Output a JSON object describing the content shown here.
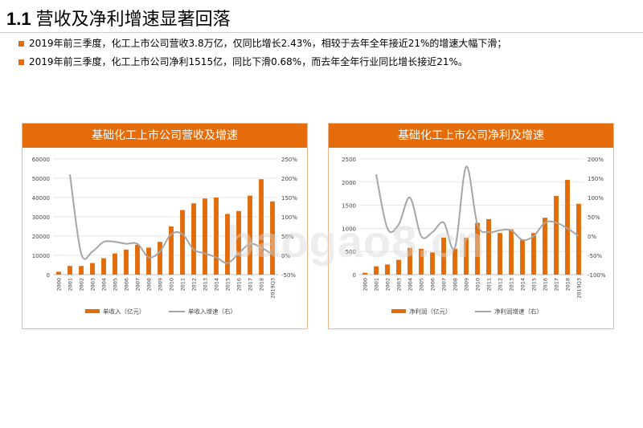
{
  "header": {
    "number": "1.1",
    "title": "营收及净利增速显著回落"
  },
  "bullets": [
    "2019年前三季度，化工上市公司营收3.8万亿，仅同比增长2.43%，相较于去年全年接近21%的增速大幅下滑；",
    "2019年前三季度，化工上市公司净利1515亿，同比下滑0.68%，而去年全年行业同比增长接近21%。"
  ],
  "watermark": "baogao8.cn",
  "colors": {
    "accent": "#e46c0a",
    "bar": "#e36c0a",
    "line": "#a6a6a6"
  },
  "chart_data": [
    {
      "type": "bar",
      "title": "基础化工上市公司营收及增速",
      "categories": [
        "2000",
        "2001",
        "2002",
        "2003",
        "2004",
        "2005",
        "2006",
        "2007",
        "2008",
        "2009",
        "2010",
        "2011",
        "2012",
        "2013",
        "2014",
        "2015",
        "2016",
        "2017",
        "2018",
        "2019Q3"
      ],
      "series": [
        {
          "name": "单收入（亿元）",
          "type": "bar",
          "axis": "left",
          "values": [
            1500,
            4500,
            4500,
            6000,
            8500,
            11000,
            13000,
            15500,
            14000,
            17000,
            25000,
            33500,
            37000,
            39500,
            40000,
            31500,
            33000,
            41000,
            49500,
            38000
          ]
        },
        {
          "name": "单收入增速（右）",
          "type": "line",
          "axis": "right",
          "values": [
            null,
            210,
            5,
            10,
            35,
            35,
            30,
            30,
            -5,
            10,
            55,
            55,
            15,
            5,
            -5,
            -20,
            5,
            30,
            20,
            2
          ]
        }
      ],
      "ylim": [
        0,
        60000
      ],
      "yticks": [
        0,
        10000,
        20000,
        30000,
        40000,
        50000,
        60000
      ],
      "y2lim": [
        -50,
        250
      ],
      "y2ticks": [
        "-50%",
        "0%",
        "50%",
        "100%",
        "150%",
        "200%",
        "250%"
      ],
      "legend": "bottom",
      "grid": true
    },
    {
      "type": "bar",
      "title": "基础化工上市公司净利及增速",
      "categories": [
        "2000",
        "2001",
        "2002",
        "2003",
        "2004",
        "2005",
        "2006",
        "2007",
        "2008",
        "2009",
        "2010",
        "2011",
        "2012",
        "2013",
        "2014",
        "2015",
        "2016",
        "2017",
        "2018",
        "2019Q3"
      ],
      "series": [
        {
          "name": "净利润（亿元）",
          "type": "bar",
          "axis": "left",
          "values": [
            40,
            180,
            220,
            320,
            580,
            560,
            480,
            800,
            560,
            800,
            1120,
            1200,
            900,
            980,
            750,
            900,
            1230,
            1700,
            2050,
            1530
          ]
        },
        {
          "name": "净利润增速（右）",
          "type": "line",
          "axis": "right",
          "values": [
            null,
            160,
            20,
            30,
            100,
            0,
            10,
            35,
            -30,
            180,
            30,
            10,
            15,
            15,
            -10,
            0,
            35,
            35,
            20,
            0
          ]
        }
      ],
      "ylim": [
        0,
        2500
      ],
      "yticks": [
        0,
        500,
        1000,
        1500,
        2000,
        2500
      ],
      "y2lim": [
        -100,
        200
      ],
      "y2ticks": [
        "-100%",
        "-50%",
        "0%",
        "50%",
        "100%",
        "150%",
        "200%"
      ],
      "legend": "bottom",
      "grid": true
    }
  ]
}
